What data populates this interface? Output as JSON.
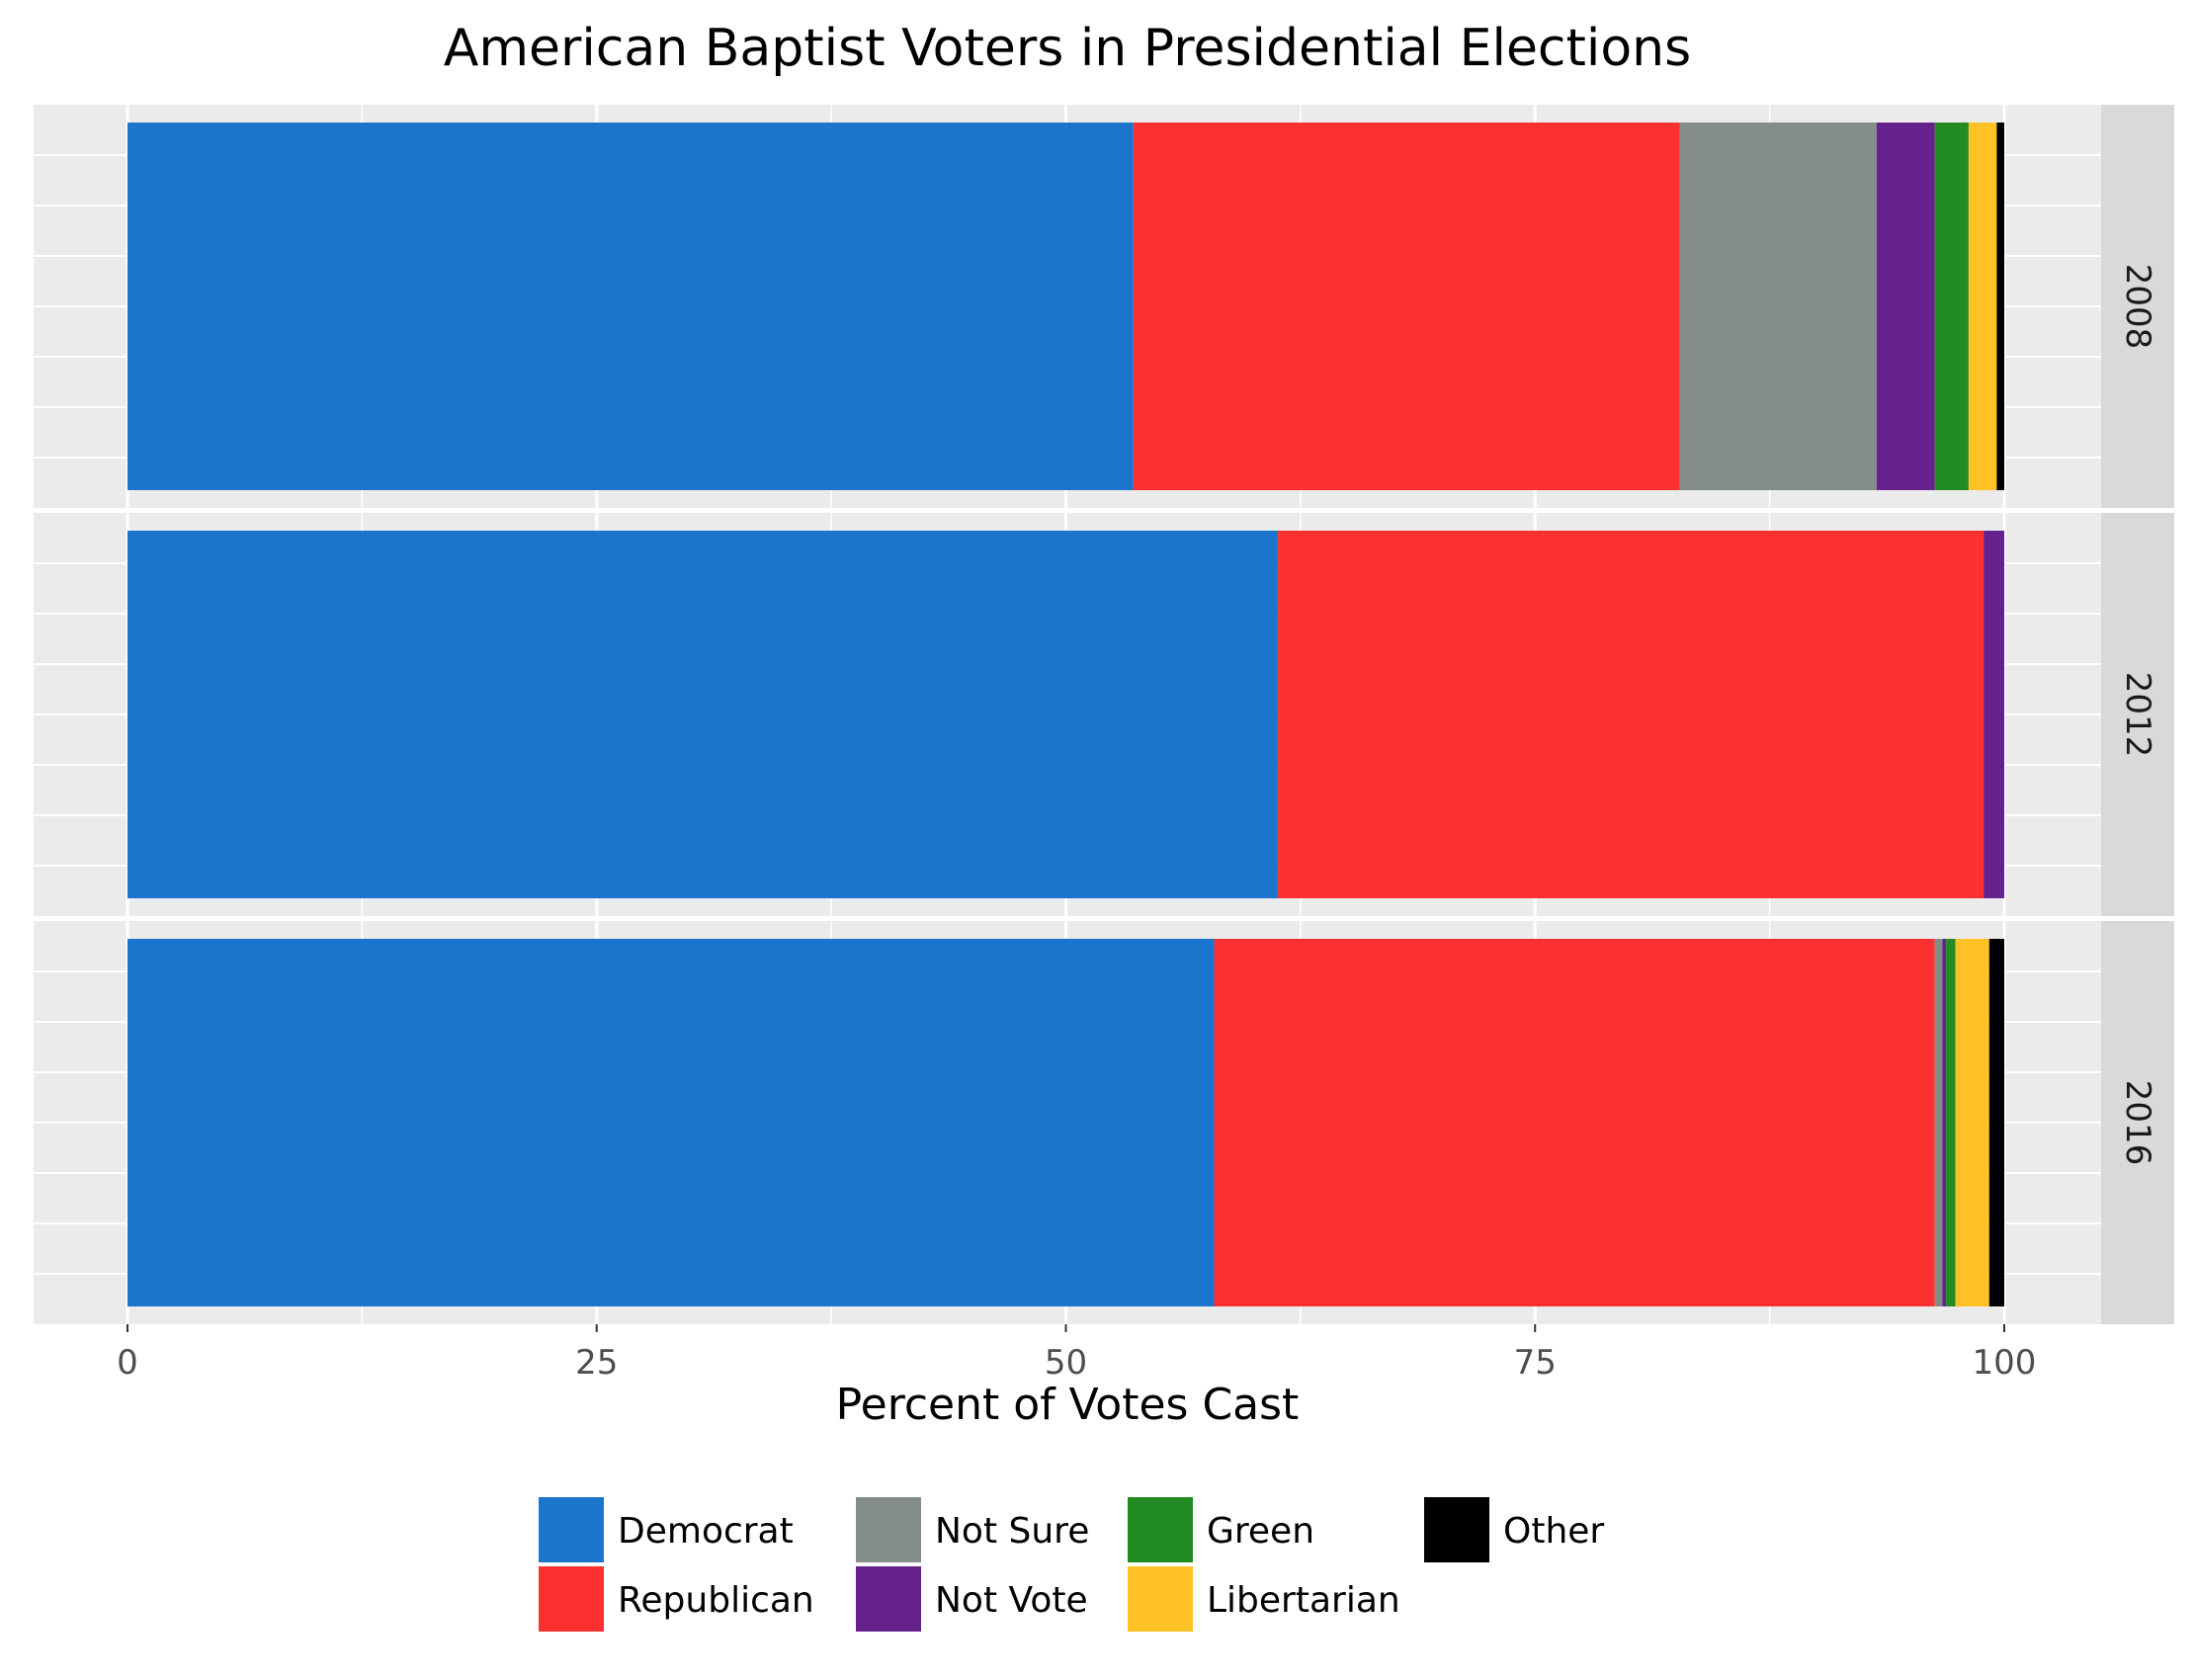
{
  "chart_data": {
    "type": "bar",
    "orientation": "horizontal",
    "stacked": true,
    "title": "American Baptist Voters in Presidential Elections",
    "xlabel": "Percent of Votes Cast",
    "ylabel": "",
    "xlim": [
      0,
      100
    ],
    "x_ticks": [
      0,
      25,
      50,
      75,
      100
    ],
    "x_tick_labels": [
      "0",
      "25",
      "50",
      "75",
      "100"
    ],
    "grid": true,
    "legend_position": "bottom",
    "facets": [
      "2008",
      "2012",
      "2016"
    ],
    "series": [
      {
        "name": "Democrat",
        "color": "#1B75CC",
        "values": [
          53.6,
          61.3,
          57.9
        ]
      },
      {
        "name": "Republican",
        "color": "#FF3030",
        "values": [
          29.1,
          37.6,
          38.4
        ]
      },
      {
        "name": "Not Sure",
        "color": "#848C8A",
        "values": [
          10.5,
          0.0,
          0.4
        ]
      },
      {
        "name": "Not Vote",
        "color": "#66228C",
        "values": [
          3.1,
          1.1,
          0.2
        ]
      },
      {
        "name": "Green",
        "color": "#228B22",
        "values": [
          1.8,
          0.0,
          0.5
        ]
      },
      {
        "name": "Libertarian",
        "color": "#FFC125",
        "values": [
          1.5,
          0.0,
          1.8
        ]
      },
      {
        "name": "Other",
        "color": "#000000",
        "values": [
          0.4,
          0.0,
          0.8
        ]
      }
    ],
    "legend_order": [
      "Democrat",
      "Republican",
      "Not Sure",
      "Not Vote",
      "Green",
      "Libertarian",
      "Other"
    ]
  },
  "colors": {
    "panel_background": "#EBEBEB",
    "strip_background": "#D9D9D9",
    "grid_major": "#FFFFFF"
  }
}
